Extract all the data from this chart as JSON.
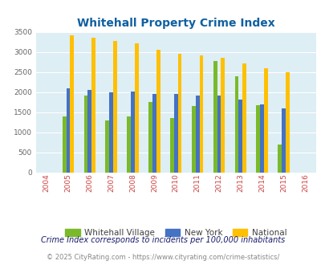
{
  "title": "Whitehall Property Crime Index",
  "years": [
    2004,
    2005,
    2006,
    2007,
    2008,
    2009,
    2010,
    2011,
    2012,
    2013,
    2014,
    2015,
    2016
  ],
  "whitehall": [
    null,
    1400,
    1920,
    1300,
    1400,
    1750,
    1350,
    1650,
    2770,
    2400,
    1680,
    700,
    null
  ],
  "new_york": [
    null,
    2090,
    2050,
    2000,
    2020,
    1950,
    1950,
    1920,
    1910,
    1820,
    1700,
    1600,
    null
  ],
  "national": [
    null,
    3420,
    3350,
    3270,
    3210,
    3050,
    2950,
    2910,
    2850,
    2710,
    2600,
    2500,
    null
  ],
  "color_whitehall": "#7aba2a",
  "color_newyork": "#4472c4",
  "color_national": "#ffc000",
  "bg_color": "#ddeef4",
  "ylim": [
    0,
    3500
  ],
  "yticks": [
    0,
    500,
    1000,
    1500,
    2000,
    2500,
    3000,
    3500
  ],
  "legend_labels": [
    "Whitehall Village",
    "New York",
    "National"
  ],
  "footnote1": "Crime Index corresponds to incidents per 100,000 inhabitants",
  "footnote2": "© 2025 CityRating.com - https://www.cityrating.com/crime-statistics/",
  "title_color": "#1060a0",
  "footnote1_color": "#1a1a6e",
  "footnote2_color": "#888888",
  "xtick_color": "#cc4444",
  "ytick_color": "#666666"
}
